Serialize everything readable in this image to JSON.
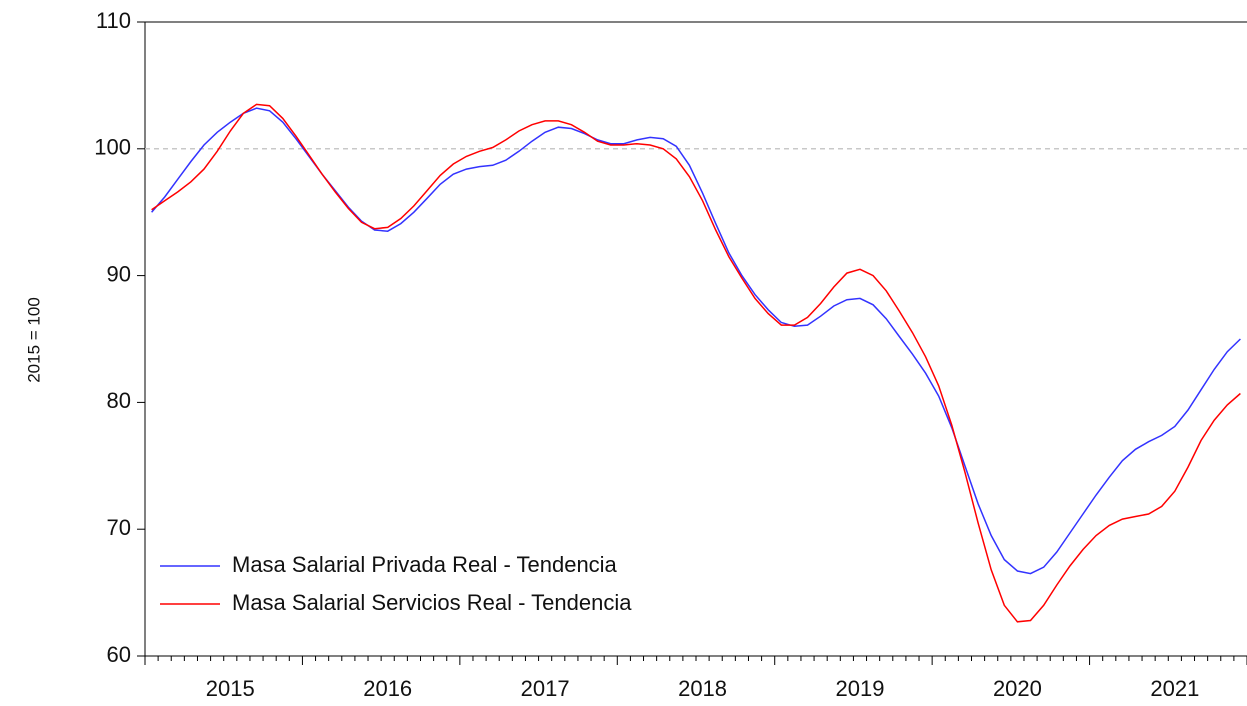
{
  "chart_data": {
    "type": "line",
    "y_label": "2015 = 100",
    "categories": [
      null,
      null,
      null,
      null,
      null,
      null,
      "2015",
      null,
      null,
      null,
      null,
      null,
      null,
      null,
      null,
      null,
      null,
      null,
      "2016",
      null,
      null,
      null,
      null,
      null,
      null,
      null,
      null,
      null,
      null,
      null,
      "2017",
      null,
      null,
      null,
      null,
      null,
      null,
      null,
      null,
      null,
      null,
      null,
      "2018",
      null,
      null,
      null,
      null,
      null,
      null,
      null,
      null,
      null,
      null,
      null,
      "2019",
      null,
      null,
      null,
      null,
      null,
      null,
      null,
      null,
      null,
      null,
      null,
      "2020",
      null,
      null,
      null,
      null,
      null,
      null,
      null,
      null,
      null,
      null,
      null,
      "2021",
      null,
      null,
      null,
      null,
      null
    ],
    "series": [
      {
        "name": "Masa Salarial Privada Real - Tendencia",
        "color": "#3333ff",
        "values": [
          95.0,
          96.2,
          97.6,
          99.0,
          100.3,
          101.3,
          102.1,
          102.8,
          103.2,
          103.0,
          102.1,
          100.8,
          99.4,
          98.0,
          96.7,
          95.4,
          94.3,
          93.6,
          93.5,
          94.1,
          95.0,
          96.1,
          97.2,
          98.0,
          98.4,
          98.6,
          98.7,
          99.1,
          99.8,
          100.6,
          101.3,
          101.7,
          101.6,
          101.2,
          100.7,
          100.4,
          100.4,
          100.7,
          100.9,
          100.8,
          100.2,
          98.7,
          96.5,
          94.1,
          91.8,
          90.0,
          88.5,
          87.3,
          86.3,
          86.0,
          86.1,
          86.8,
          87.6,
          88.1,
          88.2,
          87.7,
          86.6,
          85.2,
          83.8,
          82.3,
          80.5,
          78.0,
          75.0,
          72.0,
          69.5,
          67.6,
          66.7,
          66.5,
          67.0,
          68.2,
          69.7,
          71.2,
          72.7,
          74.1,
          75.4,
          76.3,
          76.9,
          77.4,
          78.1,
          79.4,
          81.0,
          82.6,
          84.0,
          85.0
        ]
      },
      {
        "name": "Masa Salarial Servicios Real - Tendencia",
        "color": "#ff0000",
        "values": [
          95.2,
          95.9,
          96.6,
          97.4,
          98.4,
          99.8,
          101.4,
          102.8,
          103.5,
          103.4,
          102.4,
          101.0,
          99.5,
          98.0,
          96.6,
          95.3,
          94.2,
          93.7,
          93.8,
          94.5,
          95.5,
          96.7,
          97.9,
          98.8,
          99.4,
          99.8,
          100.1,
          100.7,
          101.4,
          101.9,
          102.2,
          102.2,
          101.9,
          101.3,
          100.6,
          100.3,
          100.3,
          100.4,
          100.3,
          100.0,
          99.2,
          97.8,
          95.9,
          93.6,
          91.5,
          89.8,
          88.2,
          87.0,
          86.1,
          86.1,
          86.7,
          87.8,
          89.1,
          90.2,
          90.5,
          90.0,
          88.8,
          87.2,
          85.5,
          83.6,
          81.3,
          78.2,
          74.5,
          70.5,
          66.8,
          64.0,
          62.7,
          62.8,
          64.0,
          65.6,
          67.1,
          68.4,
          69.5,
          70.3,
          70.8,
          71.0,
          71.2,
          71.8,
          73.0,
          74.9,
          77.0,
          78.6,
          79.8,
          80.7
        ]
      }
    ],
    "ylim": [
      60,
      110
    ],
    "yticks": [
      60,
      70,
      80,
      90,
      100,
      110
    ],
    "reference_line": 100,
    "legend": "lower-left"
  }
}
